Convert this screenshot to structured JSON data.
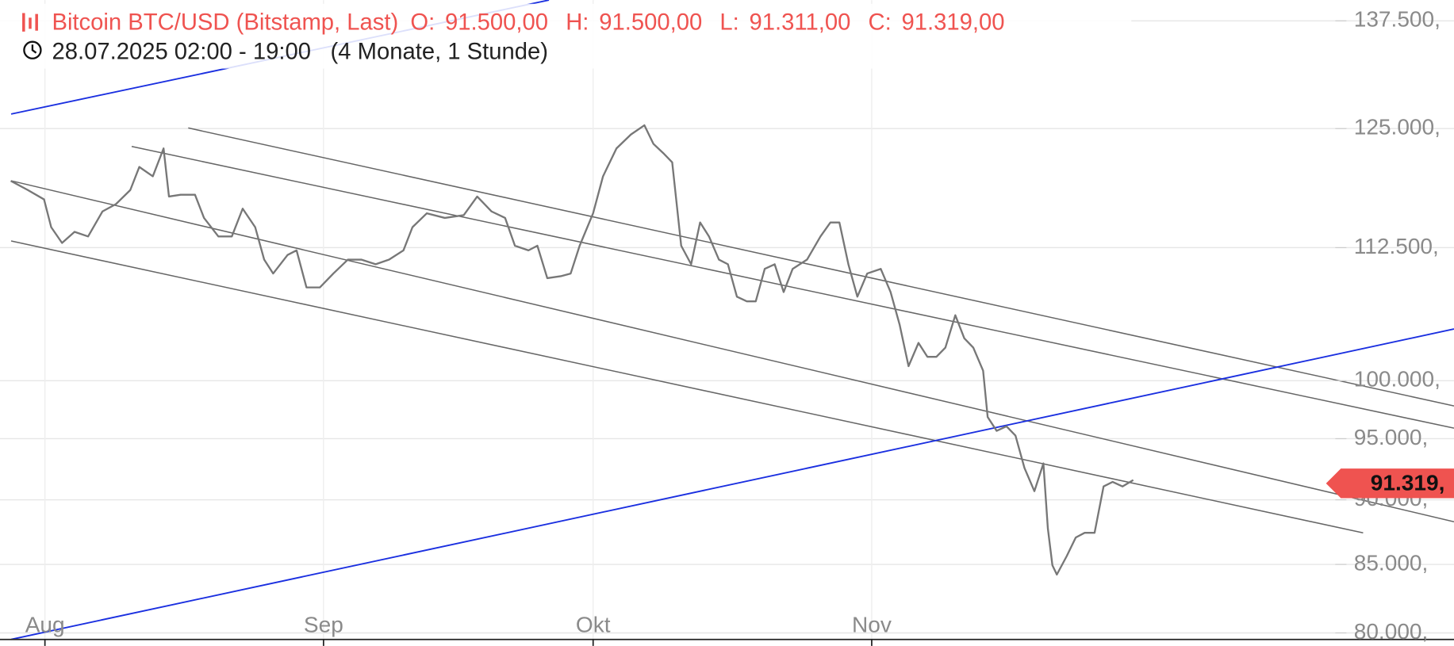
{
  "chart_data": {
    "type": "line",
    "title": "Bitcoin BTC/USD (Bitstamp, Last)",
    "ohlc": [
      {
        "label": "O:",
        "value": "91.500,00"
      },
      {
        "label": "H:",
        "value": "91.500,00"
      },
      {
        "label": "L:",
        "value": "91.311,00"
      },
      {
        "label": "C:",
        "value": "91.319,00"
      }
    ],
    "subtitle": "28.07.2025 02:00 - 19:00",
    "period": "(4 Monate, 1 Stunde)",
    "log_scale": true,
    "grid": true,
    "color": "#777777",
    "x": [
      -3.8,
      -1.9,
      -0.1,
      0.7,
      1.9,
      3.3,
      4.8,
      6.4,
      7.9,
      9.5,
      10.5,
      12.0,
      13.2,
      13.8,
      15.1,
      16.7,
      17.7,
      19.3,
      20.8,
      22.0,
      23.4,
      24.4,
      25.4,
      27.0,
      28.0,
      29.1,
      30.6,
      32.1,
      33.7,
      35.2,
      36.8,
      38.3,
      39.9,
      40.9,
      42.5,
      44.5,
      46.6,
      48.1,
      49.7,
      51.2,
      52.3,
      53.8,
      54.8,
      55.9,
      57.4,
      58.5,
      59.5,
      61.0,
      62.1,
      63.6,
      65.2,
      66.7,
      67.7,
      68.8,
      69.8,
      70.8,
      71.9,
      72.9,
      73.9,
      75.0,
      76.0,
      77.0,
      78.1,
      79.1,
      80.1,
      81.2,
      82.2,
      83.2,
      84.8,
      86.3,
      87.4,
      88.4,
      89.4,
      90.4,
      91.5,
      93.0,
      94.1,
      95.1,
      96.1,
      97.2,
      98.2,
      99.2,
      100.2,
      101.3,
      102.3,
      103.3,
      104.4,
      104.9,
      105.9,
      107.0,
      108.0,
      109.0,
      110.1,
      111.1,
      111.6,
      112.1,
      112.6,
      113.7,
      114.7,
      115.7,
      116.8,
      117.8,
      118.8,
      119.9,
      121.1
    ],
    "values": [
      119350,
      118380,
      117410,
      114550,
      112970,
      114080,
      113620,
      116160,
      116920,
      118380,
      120820,
      119830,
      122820,
      117700,
      117890,
      117890,
      115500,
      113620,
      113620,
      116450,
      114550,
      111310,
      109950,
      111770,
      112230,
      108610,
      108610,
      109950,
      111310,
      111310,
      110860,
      111310,
      112230,
      114550,
      115970,
      115500,
      115780,
      117700,
      116160,
      115500,
      112690,
      112230,
      112690,
      109500,
      109690,
      109950,
      112690,
      115970,
      119830,
      122820,
      124340,
      125360,
      123330,
      122320,
      121320,
      112690,
      110860,
      115030,
      113620,
      111310,
      110860,
      107720,
      107280,
      107280,
      110400,
      110860,
      108160,
      110400,
      111310,
      113620,
      115030,
      115030,
      110860,
      107720,
      109950,
      110400,
      108160,
      105110,
      101300,
      103400,
      102140,
      102140,
      102970,
      105970,
      103830,
      102970,
      100890,
      96840,
      95660,
      96050,
      95260,
      92570,
      90690,
      92950,
      87760,
      84940,
      84240,
      85630,
      87050,
      87410,
      87410,
      91070,
      91440,
      91070,
      91590
    ],
    "xlim": [
      -5,
      157
    ],
    "xticks": [
      {
        "value": 0,
        "label": "Aug"
      },
      {
        "value": 31,
        "label": "Sep"
      },
      {
        "value": 61,
        "label": "Okt"
      },
      {
        "value": 92,
        "label": "Nov"
      }
    ],
    "ylim": [
      79540,
      140050
    ],
    "yticks": [
      {
        "value": 137500,
        "label": "137.500,"
      },
      {
        "value": 125000,
        "label": "125.000,"
      },
      {
        "value": 112500,
        "label": "112.500,"
      },
      {
        "value": 100000,
        "label": "100.000,"
      },
      {
        "value": 95000,
        "label": "95.000,"
      },
      {
        "value": 90000,
        "label": "90.000,"
      },
      {
        "value": 85000,
        "label": "85.000,"
      },
      {
        "value": 80000,
        "label": "80.000,"
      }
    ],
    "last_price": 91319,
    "last_price_label": "91.319,"
  }
}
